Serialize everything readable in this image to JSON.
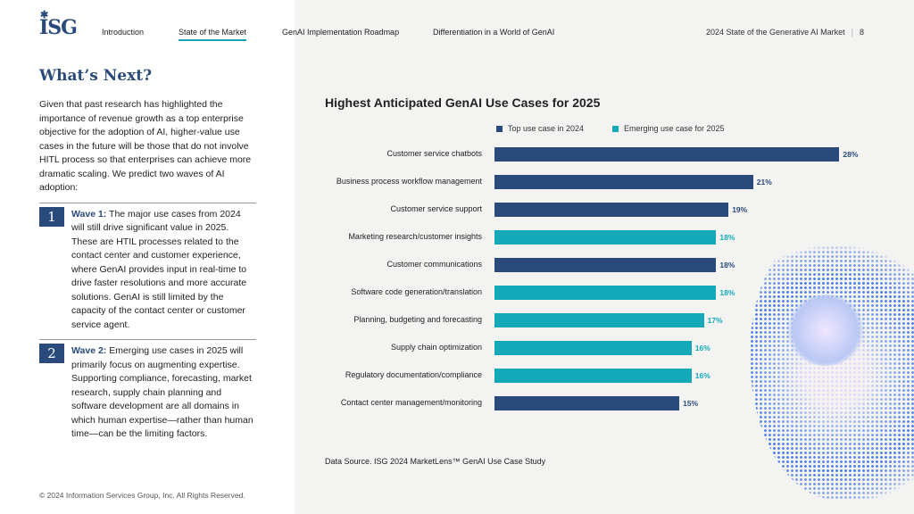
{
  "header": {
    "logo": "ISG",
    "nav": [
      "Introduction",
      "State of the Market",
      "GenAI Implementation Roadmap",
      "Differentiation in a World of GenAI"
    ],
    "active_nav": 1,
    "report_title": "2024 State of the Generative AI Market",
    "page_number": "8"
  },
  "left": {
    "heading": "What’s Next?",
    "intro": "Given that past research has highlighted the importance of revenue growth as a top enterprise objective for the adoption of AI, higher-value use cases in the future will be those that do not involve HITL process so that enterprises can achieve more dramatic scaling. We predict two waves of AI adoption:",
    "waves": [
      {
        "num": "1",
        "title": "Wave 1:",
        "text": " The major use cases from 2024 will still drive significant value in 2025. These are HTIL processes related to the contact center and customer experience, where GenAI provides input in real-time to drive faster resolutions and more accurate solutions. GenAI is still limited by the capacity of the contact center or customer service agent."
      },
      {
        "num": "2",
        "title": "Wave 2:",
        "text": " Emerging use cases in 2025 will primarily focus on augmenting expertise. Supporting compliance, forecasting, market research, supply chain planning and software development are all domains in which human expertise—rather than human time—can be the limiting factors."
      }
    ],
    "copyright": "© 2024 Information Services Group, Inc. All Rights Reserved."
  },
  "chart_data": {
    "type": "bar",
    "orientation": "horizontal",
    "title": "Highest Anticipated GenAI Use Cases for 2025",
    "series_legend": [
      {
        "name": "Top use case in 2024",
        "color": "#2a4a7b"
      },
      {
        "name": "Emerging use case for 2025",
        "color": "#14a9b8"
      }
    ],
    "categories": [
      "Customer service chatbots",
      "Business process workflow management",
      "Customer service support",
      "Marketing research/customer insights",
      "Customer communications",
      "Software code generation/translation",
      "Planning, budgeting and forecasting",
      "Supply chain optimization",
      "Regulatory documentation/compliance",
      "Contact center management/monitoring"
    ],
    "values": [
      28,
      21,
      19,
      18,
      18,
      18,
      17,
      16,
      16,
      15
    ],
    "value_labels": [
      "28%",
      "21%",
      "19%",
      "18%",
      "18%",
      "18%",
      "17%",
      "16%",
      "16%",
      "15%"
    ],
    "series_index": [
      0,
      0,
      0,
      1,
      0,
      1,
      1,
      1,
      1,
      0
    ],
    "source": "Data Source. ISG 2024 MarketLens™ GenAI Use Case Study"
  }
}
